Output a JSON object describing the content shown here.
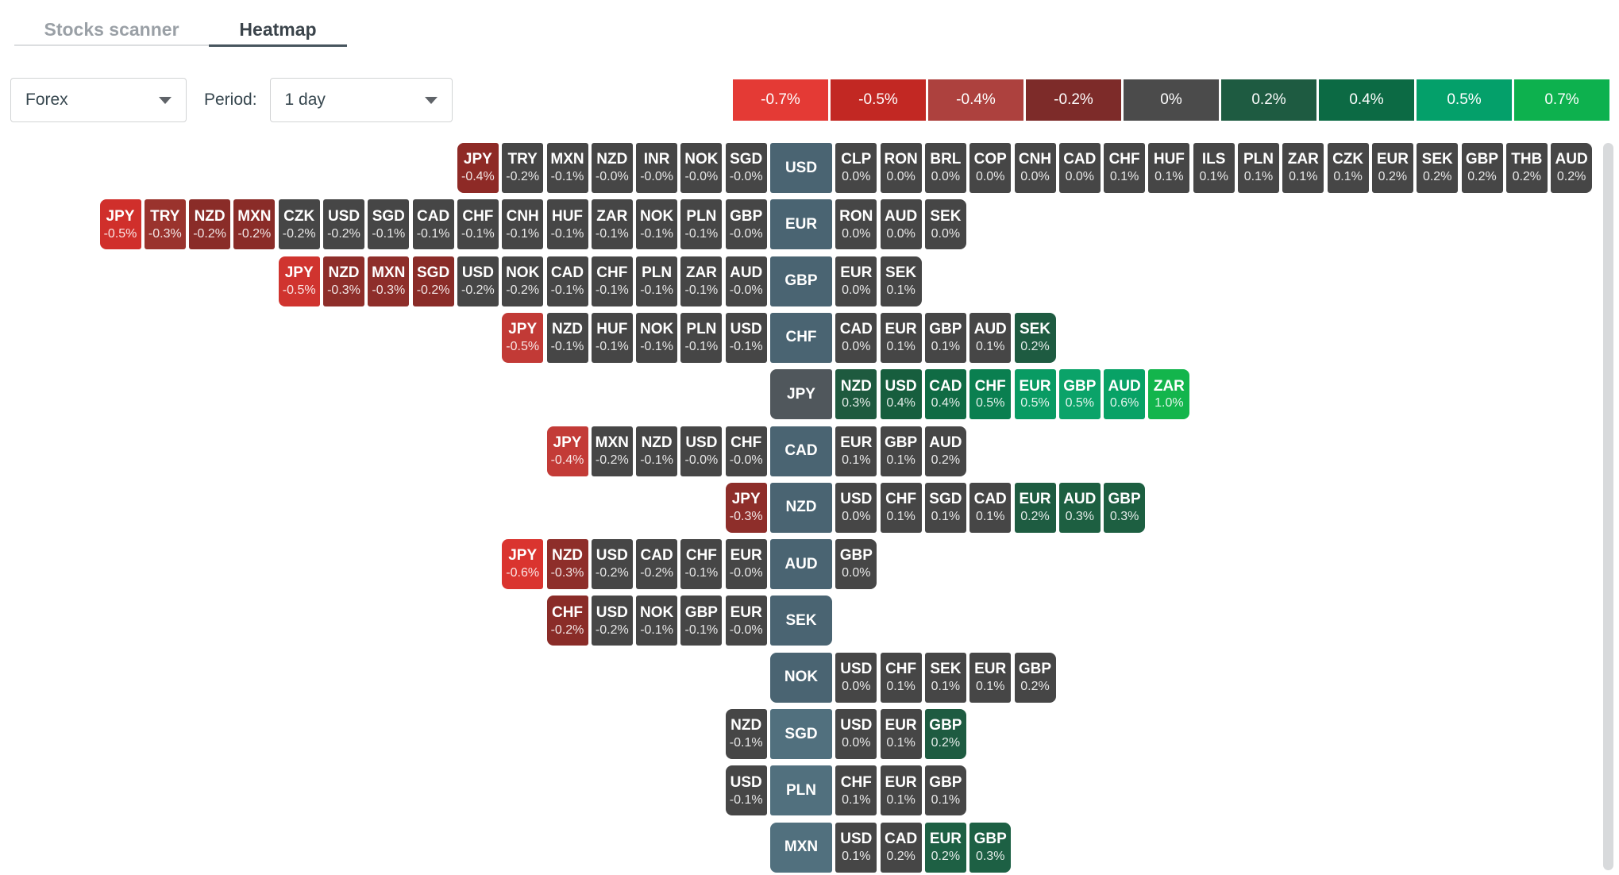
{
  "tabs": [
    {
      "label": "Stocks scanner",
      "active": false
    },
    {
      "label": "Heatmap",
      "active": true
    }
  ],
  "controls": {
    "market_select": {
      "value": "Forex"
    },
    "period_label": "Period:",
    "period_select": {
      "value": "1 day"
    }
  },
  "legend": [
    {
      "label": "-0.7%",
      "color": "#e43a35"
    },
    {
      "label": "-0.5%",
      "color": "#c22823"
    },
    {
      "label": "-0.4%",
      "color": "#ad413e"
    },
    {
      "label": "-0.2%",
      "color": "#7d2b29"
    },
    {
      "label": "0%",
      "color": "#4b4b4b"
    },
    {
      "label": "0.2%",
      "color": "#1e5b41"
    },
    {
      "label": "0.4%",
      "color": "#0c6a44"
    },
    {
      "label": "0.5%",
      "color": "#04a06a"
    },
    {
      "label": "0.7%",
      "color": "#0db14e"
    }
  ],
  "chart_data": {
    "type": "heatmap",
    "description": "Forex 1-day relative performance heatmap; each row is a base currency, left cells are quote currencies it fell against, right cells are quote currencies it rose against",
    "rows": [
      {
        "code": "USD",
        "label_color": "#4a6472",
        "left": [
          {
            "c": "JPY",
            "v": "-0.4%",
            "bg": "#8e2a26"
          },
          {
            "c": "TRY",
            "v": "-0.2%",
            "bg": "#464646"
          },
          {
            "c": "MXN",
            "v": "-0.1%",
            "bg": "#464646"
          },
          {
            "c": "NZD",
            "v": "-0.0%",
            "bg": "#464646"
          },
          {
            "c": "INR",
            "v": "-0.0%",
            "bg": "#464646"
          },
          {
            "c": "NOK",
            "v": "-0.0%",
            "bg": "#464646"
          },
          {
            "c": "SGD",
            "v": "-0.0%",
            "bg": "#464646"
          }
        ],
        "right": [
          {
            "c": "CLP",
            "v": "0.0%",
            "bg": "#464646"
          },
          {
            "c": "RON",
            "v": "0.0%",
            "bg": "#464646"
          },
          {
            "c": "BRL",
            "v": "0.0%",
            "bg": "#464646"
          },
          {
            "c": "COP",
            "v": "0.0%",
            "bg": "#464646"
          },
          {
            "c": "CNH",
            "v": "0.0%",
            "bg": "#464646"
          },
          {
            "c": "CAD",
            "v": "0.0%",
            "bg": "#464646"
          },
          {
            "c": "CHF",
            "v": "0.1%",
            "bg": "#464646"
          },
          {
            "c": "HUF",
            "v": "0.1%",
            "bg": "#464646"
          },
          {
            "c": "ILS",
            "v": "0.1%",
            "bg": "#464646"
          },
          {
            "c": "PLN",
            "v": "0.1%",
            "bg": "#464646"
          },
          {
            "c": "ZAR",
            "v": "0.1%",
            "bg": "#464646"
          },
          {
            "c": "CZK",
            "v": "0.1%",
            "bg": "#464646"
          },
          {
            "c": "EUR",
            "v": "0.2%",
            "bg": "#464646"
          },
          {
            "c": "SEK",
            "v": "0.2%",
            "bg": "#464646"
          },
          {
            "c": "GBP",
            "v": "0.2%",
            "bg": "#464646"
          },
          {
            "c": "THB",
            "v": "0.2%",
            "bg": "#464646"
          },
          {
            "c": "AUD",
            "v": "0.2%",
            "bg": "#464646"
          }
        ]
      },
      {
        "code": "EUR",
        "label_color": "#4a6472",
        "left": [
          {
            "c": "JPY",
            "v": "-0.5%",
            "bg": "#d02f2b"
          },
          {
            "c": "TRY",
            "v": "-0.3%",
            "bg": "#9a332d"
          },
          {
            "c": "NZD",
            "v": "-0.2%",
            "bg": "#8a2c28"
          },
          {
            "c": "MXN",
            "v": "-0.2%",
            "bg": "#8a2c28"
          },
          {
            "c": "CZK",
            "v": "-0.2%",
            "bg": "#464646"
          },
          {
            "c": "USD",
            "v": "-0.2%",
            "bg": "#464646"
          },
          {
            "c": "SGD",
            "v": "-0.1%",
            "bg": "#464646"
          },
          {
            "c": "CAD",
            "v": "-0.1%",
            "bg": "#464646"
          },
          {
            "c": "CHF",
            "v": "-0.1%",
            "bg": "#464646"
          },
          {
            "c": "CNH",
            "v": "-0.1%",
            "bg": "#464646"
          },
          {
            "c": "HUF",
            "v": "-0.1%",
            "bg": "#464646"
          },
          {
            "c": "ZAR",
            "v": "-0.1%",
            "bg": "#464646"
          },
          {
            "c": "NOK",
            "v": "-0.1%",
            "bg": "#464646"
          },
          {
            "c": "PLN",
            "v": "-0.1%",
            "bg": "#464646"
          },
          {
            "c": "GBP",
            "v": "-0.0%",
            "bg": "#464646"
          }
        ],
        "right": [
          {
            "c": "RON",
            "v": "0.0%",
            "bg": "#464646"
          },
          {
            "c": "AUD",
            "v": "0.0%",
            "bg": "#464646"
          },
          {
            "c": "SEK",
            "v": "0.0%",
            "bg": "#464646"
          }
        ]
      },
      {
        "code": "GBP",
        "label_color": "#4a6472",
        "left": [
          {
            "c": "JPY",
            "v": "-0.5%",
            "bg": "#d0342f"
          },
          {
            "c": "NZD",
            "v": "-0.3%",
            "bg": "#8e2e2a"
          },
          {
            "c": "MXN",
            "v": "-0.3%",
            "bg": "#8e2e2a"
          },
          {
            "c": "SGD",
            "v": "-0.2%",
            "bg": "#8a2c28"
          },
          {
            "c": "USD",
            "v": "-0.2%",
            "bg": "#464646"
          },
          {
            "c": "NOK",
            "v": "-0.2%",
            "bg": "#464646"
          },
          {
            "c": "CAD",
            "v": "-0.1%",
            "bg": "#464646"
          },
          {
            "c": "CHF",
            "v": "-0.1%",
            "bg": "#464646"
          },
          {
            "c": "PLN",
            "v": "-0.1%",
            "bg": "#464646"
          },
          {
            "c": "ZAR",
            "v": "-0.1%",
            "bg": "#464646"
          },
          {
            "c": "AUD",
            "v": "-0.0%",
            "bg": "#464646"
          }
        ],
        "right": [
          {
            "c": "EUR",
            "v": "0.0%",
            "bg": "#464646"
          },
          {
            "c": "SEK",
            "v": "0.1%",
            "bg": "#464646"
          }
        ]
      },
      {
        "code": "CHF",
        "label_color": "#4a6472",
        "left": [
          {
            "c": "JPY",
            "v": "-0.5%",
            "bg": "#c23a36"
          },
          {
            "c": "NZD",
            "v": "-0.1%",
            "bg": "#464646"
          },
          {
            "c": "HUF",
            "v": "-0.1%",
            "bg": "#464646"
          },
          {
            "c": "NOK",
            "v": "-0.1%",
            "bg": "#464646"
          },
          {
            "c": "PLN",
            "v": "-0.1%",
            "bg": "#464646"
          },
          {
            "c": "USD",
            "v": "-0.1%",
            "bg": "#464646"
          }
        ],
        "right": [
          {
            "c": "CAD",
            "v": "0.0%",
            "bg": "#464646"
          },
          {
            "c": "EUR",
            "v": "0.1%",
            "bg": "#464646"
          },
          {
            "c": "GBP",
            "v": "0.1%",
            "bg": "#464646"
          },
          {
            "c": "AUD",
            "v": "0.1%",
            "bg": "#464646"
          },
          {
            "c": "SEK",
            "v": "0.2%",
            "bg": "#1e5b41"
          }
        ]
      },
      {
        "code": "JPY",
        "label_color": "#50575c",
        "left": [],
        "right": [
          {
            "c": "NZD",
            "v": "0.3%",
            "bg": "#1e5a3f"
          },
          {
            "c": "USD",
            "v": "0.4%",
            "bg": "#175e3e"
          },
          {
            "c": "CAD",
            "v": "0.4%",
            "bg": "#106b44"
          },
          {
            "c": "CHF",
            "v": "0.5%",
            "bg": "#0a7f50"
          },
          {
            "c": "EUR",
            "v": "0.5%",
            "bg": "#099b63"
          },
          {
            "c": "GBP",
            "v": "0.5%",
            "bg": "#0ba369"
          },
          {
            "c": "AUD",
            "v": "0.6%",
            "bg": "#08a266"
          },
          {
            "c": "ZAR",
            "v": "1.0%",
            "bg": "#13b54c"
          }
        ]
      },
      {
        "code": "CAD",
        "label_color": "#4a6472",
        "left": [
          {
            "c": "JPY",
            "v": "-0.4%",
            "bg": "#c33b37"
          },
          {
            "c": "MXN",
            "v": "-0.2%",
            "bg": "#464646"
          },
          {
            "c": "NZD",
            "v": "-0.1%",
            "bg": "#464646"
          },
          {
            "c": "USD",
            "v": "-0.0%",
            "bg": "#464646"
          },
          {
            "c": "CHF",
            "v": "-0.0%",
            "bg": "#464646"
          }
        ],
        "right": [
          {
            "c": "EUR",
            "v": "0.1%",
            "bg": "#464646"
          },
          {
            "c": "GBP",
            "v": "0.1%",
            "bg": "#464646"
          },
          {
            "c": "AUD",
            "v": "0.2%",
            "bg": "#464646"
          }
        ]
      },
      {
        "code": "NZD",
        "label_color": "#4a6472",
        "left": [
          {
            "c": "JPY",
            "v": "-0.3%",
            "bg": "#8e2e2a"
          }
        ],
        "right": [
          {
            "c": "USD",
            "v": "0.0%",
            "bg": "#464646"
          },
          {
            "c": "CHF",
            "v": "0.1%",
            "bg": "#464646"
          },
          {
            "c": "SGD",
            "v": "0.1%",
            "bg": "#464646"
          },
          {
            "c": "CAD",
            "v": "0.1%",
            "bg": "#464646"
          },
          {
            "c": "EUR",
            "v": "0.2%",
            "bg": "#1e5c41"
          },
          {
            "c": "AUD",
            "v": "0.3%",
            "bg": "#1d5f41"
          },
          {
            "c": "GBP",
            "v": "0.3%",
            "bg": "#1d5f41"
          }
        ]
      },
      {
        "code": "AUD",
        "label_color": "#4a6472",
        "left": [
          {
            "c": "JPY",
            "v": "-0.6%",
            "bg": "#da342f"
          },
          {
            "c": "NZD",
            "v": "-0.3%",
            "bg": "#8e2e2a"
          },
          {
            "c": "USD",
            "v": "-0.2%",
            "bg": "#464646"
          },
          {
            "c": "CAD",
            "v": "-0.2%",
            "bg": "#464646"
          },
          {
            "c": "CHF",
            "v": "-0.1%",
            "bg": "#464646"
          },
          {
            "c": "EUR",
            "v": "-0.0%",
            "bg": "#464646"
          }
        ],
        "right": [
          {
            "c": "GBP",
            "v": "0.0%",
            "bg": "#464646"
          }
        ]
      },
      {
        "code": "SEK",
        "label_color": "#4a6472",
        "left": [
          {
            "c": "CHF",
            "v": "-0.2%",
            "bg": "#8a2c28"
          },
          {
            "c": "USD",
            "v": "-0.2%",
            "bg": "#464646"
          },
          {
            "c": "NOK",
            "v": "-0.1%",
            "bg": "#464646"
          },
          {
            "c": "GBP",
            "v": "-0.1%",
            "bg": "#464646"
          },
          {
            "c": "EUR",
            "v": "-0.0%",
            "bg": "#464646"
          }
        ],
        "right": []
      },
      {
        "code": "NOK",
        "label_color": "#4a6472",
        "left": [],
        "right": [
          {
            "c": "USD",
            "v": "0.0%",
            "bg": "#464646"
          },
          {
            "c": "CHF",
            "v": "0.1%",
            "bg": "#464646"
          },
          {
            "c": "SEK",
            "v": "0.1%",
            "bg": "#464646"
          },
          {
            "c": "EUR",
            "v": "0.1%",
            "bg": "#464646"
          },
          {
            "c": "GBP",
            "v": "0.2%",
            "bg": "#464646"
          }
        ]
      },
      {
        "code": "SGD",
        "label_color": "#51707e",
        "left": [
          {
            "c": "NZD",
            "v": "-0.1%",
            "bg": "#464646"
          }
        ],
        "right": [
          {
            "c": "USD",
            "v": "0.0%",
            "bg": "#464646"
          },
          {
            "c": "EUR",
            "v": "0.1%",
            "bg": "#464646"
          },
          {
            "c": "GBP",
            "v": "0.2%",
            "bg": "#1e5b41"
          }
        ]
      },
      {
        "code": "PLN",
        "label_color": "#51707e",
        "left": [
          {
            "c": "USD",
            "v": "-0.1%",
            "bg": "#464646"
          }
        ],
        "right": [
          {
            "c": "CHF",
            "v": "0.1%",
            "bg": "#464646"
          },
          {
            "c": "EUR",
            "v": "0.1%",
            "bg": "#464646"
          },
          {
            "c": "GBP",
            "v": "0.1%",
            "bg": "#464646"
          }
        ]
      },
      {
        "code": "MXN",
        "label_color": "#51707e",
        "left": [],
        "right": [
          {
            "c": "USD",
            "v": "0.1%",
            "bg": "#464646"
          },
          {
            "c": "CAD",
            "v": "0.2%",
            "bg": "#464646"
          },
          {
            "c": "EUR",
            "v": "0.2%",
            "bg": "#1e6044"
          },
          {
            "c": "GBP",
            "v": "0.3%",
            "bg": "#1d6044"
          }
        ]
      }
    ]
  }
}
